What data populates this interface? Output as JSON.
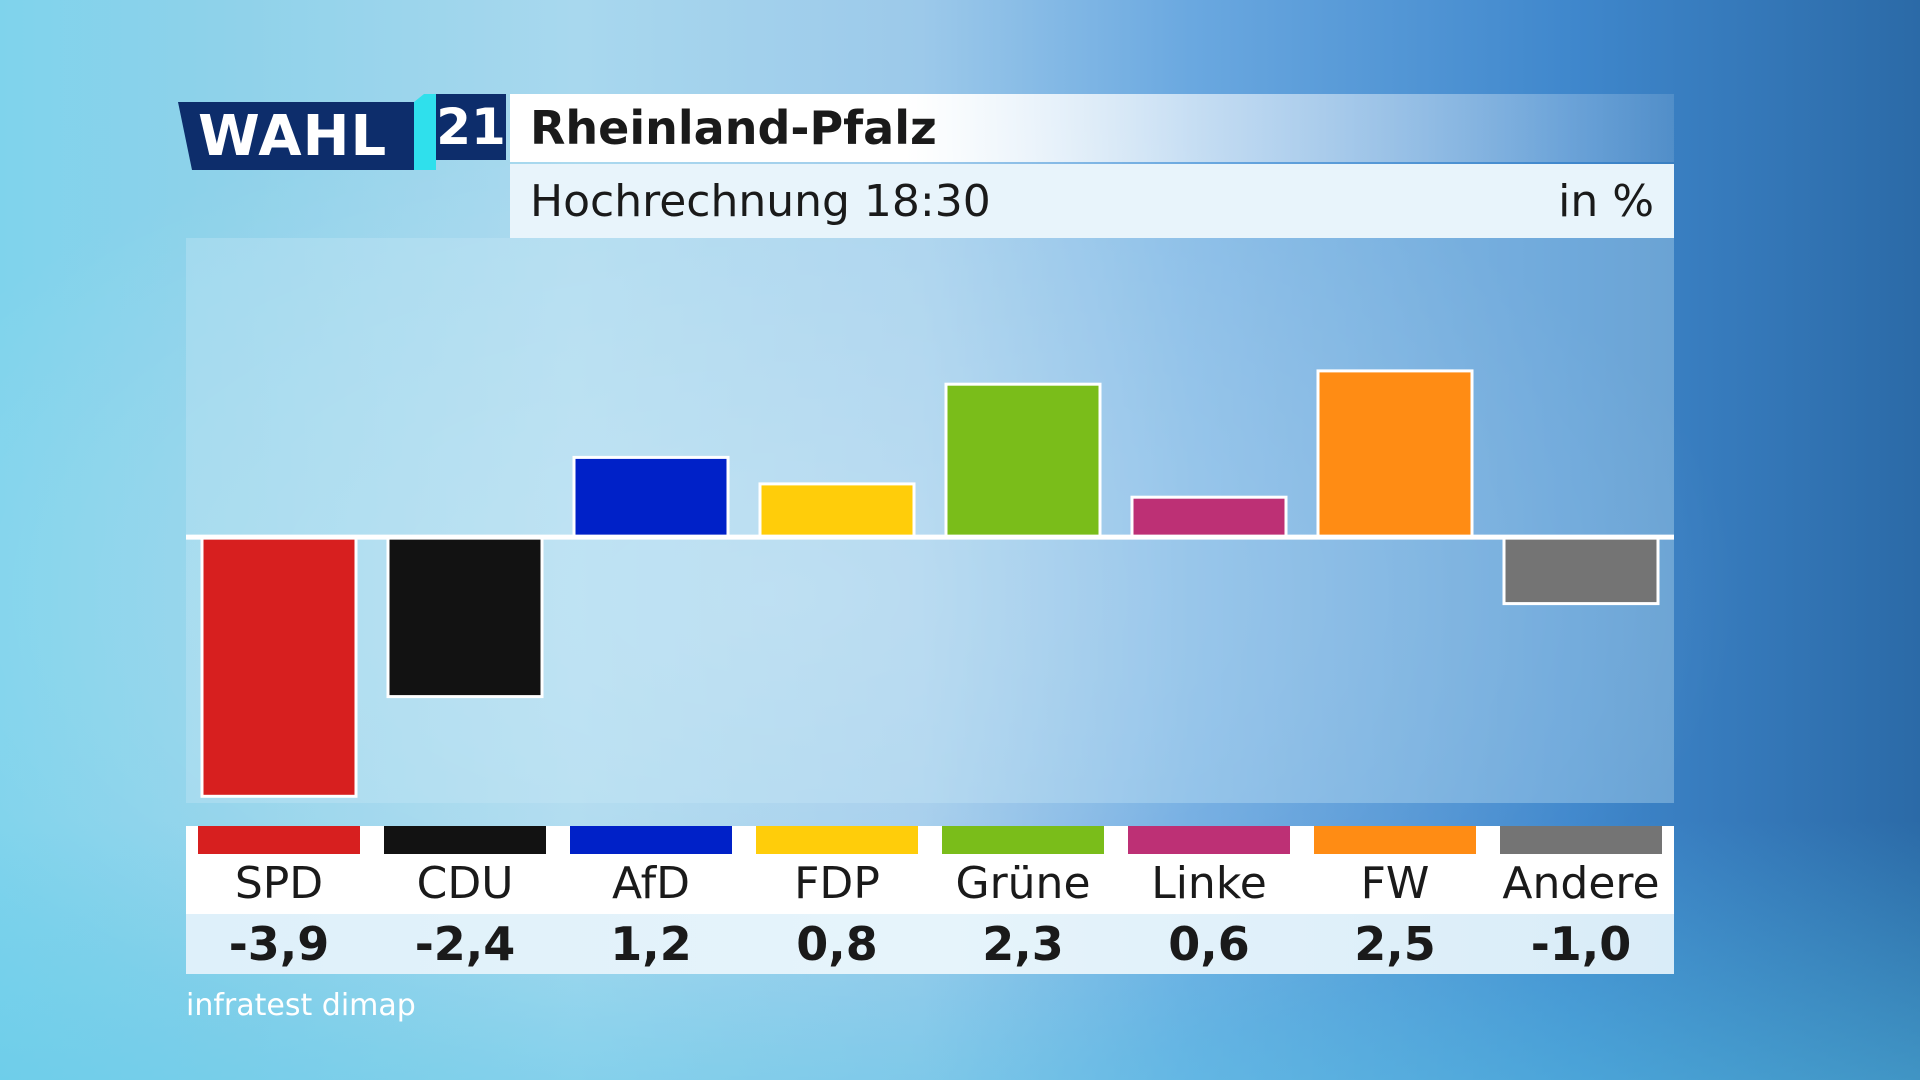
{
  "logo": {
    "text": "WAHL",
    "year": "21"
  },
  "header": {
    "title": "Rheinland-Pfalz",
    "subtitle": "Hochrechnung 18:30",
    "unit": "in %"
  },
  "source": "infratest dimap",
  "chart_data": {
    "type": "bar",
    "title": "Rheinland-Pfalz",
    "subtitle": "Hochrechnung 18:30",
    "unit": "in %",
    "categories": [
      "SPD",
      "CDU",
      "AfD",
      "FDP",
      "Grüne",
      "Linke",
      "FW",
      "Andere"
    ],
    "values": [
      -3.9,
      -2.4,
      1.2,
      0.8,
      2.3,
      0.6,
      2.5,
      -1.0
    ],
    "value_labels": [
      "-3,9",
      "-2,4",
      "1,2",
      "0,8",
      "2,3",
      "0,6",
      "2,5",
      "-1,0"
    ],
    "colors": [
      "#d71f1f",
      "#121212",
      "#0021c8",
      "#ffcd0a",
      "#7abd1a",
      "#bd3075",
      "#ff8c14",
      "#747474"
    ],
    "ylim": [
      -4.0,
      4.5
    ],
    "grid": false,
    "legend": "bottom"
  }
}
